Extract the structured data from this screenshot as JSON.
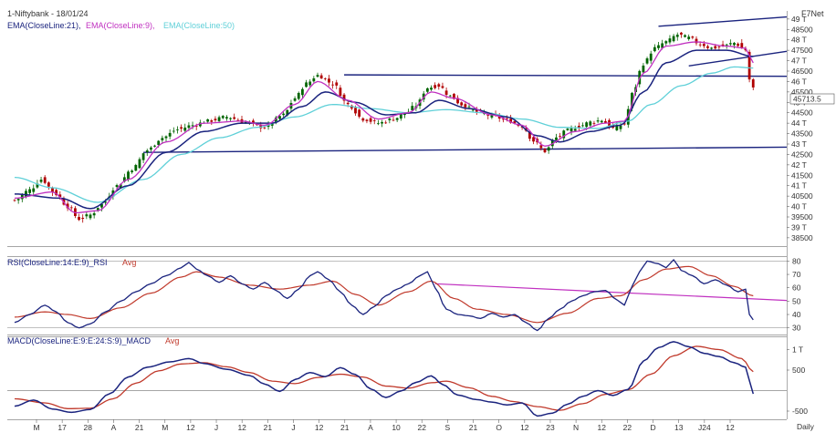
{
  "header": {
    "title": "1-Niftybank - 18/01/24",
    "vendor": "F7Net",
    "legend": [
      {
        "text": "EMA(CloseLine:21),",
        "color": "#1a237e"
      },
      {
        "text": "EMA(CloseLine:9),",
        "color": "#c030c0"
      },
      {
        "text": "EMA(CloseLine:50)",
        "color": "#5fd0d8"
      }
    ],
    "last_price_tag": "45713.5"
  },
  "colors": {
    "up": "#006400",
    "down": "#b00000",
    "ema21": "#1a237e",
    "ema9": "#c030c0",
    "ema50": "#5fd0d8",
    "trend": "#1a237e",
    "rsi": "#1a237e",
    "rsi_avg": "#c0392b",
    "rsi_trend": "#c030c0",
    "macd": "#1a237e",
    "macd_avg": "#c0392b"
  },
  "price_panel": {
    "y_ticks": [
      "49 T",
      "48500",
      "48 T",
      "47500",
      "47 T",
      "46500",
      "46 T",
      "45500",
      "45 T",
      "44500",
      "44 T",
      "43500",
      "43 T",
      "42500",
      "42 T",
      "41500",
      "41 T",
      "40500",
      "40 T",
      "39500",
      "39 T",
      "38500"
    ],
    "y_values": [
      49000,
      48500,
      48000,
      47500,
      47000,
      46500,
      46000,
      45500,
      45000,
      44500,
      44000,
      43500,
      43000,
      42500,
      42000,
      41500,
      41000,
      40500,
      40000,
      39500,
      39000,
      38500
    ],
    "ylim": [
      38100,
      49300
    ]
  },
  "rsi_panel": {
    "label": "RSI(CloseLine:14:E:9)_RSI",
    "avg_label": "Avg",
    "y_ticks": [
      "80",
      "70",
      "60",
      "50",
      "40",
      "30"
    ],
    "y_values": [
      80,
      70,
      60,
      50,
      40,
      30
    ],
    "ylim": [
      25,
      83
    ]
  },
  "macd_panel": {
    "label": "MACD(CloseLine:E:9:E:24:S:9)_MACD",
    "avg_label": "Avg",
    "y_ticks": [
      "1 T",
      "500",
      "-500"
    ],
    "y_values": [
      1000,
      500,
      -500
    ],
    "ylim": [
      -700,
      1300
    ]
  },
  "x_axis": {
    "labels": [
      "M",
      "17",
      "28",
      "A",
      "21",
      "M",
      "12",
      "J",
      "12",
      "21",
      "J",
      "12",
      "21",
      "A",
      "10",
      "22",
      "S",
      "21",
      "O",
      "12",
      "23",
      "N",
      "12",
      "22",
      "D",
      "13",
      "J24",
      "12"
    ],
    "period": "Daily"
  },
  "chart_data": {
    "type": "line",
    "title": "1-Niftybank - 18/01/24",
    "x_period": "Daily",
    "last_close": 45713.5,
    "price_anchors": [
      [
        0,
        40300
      ],
      [
        4,
        40800
      ],
      [
        7,
        41300
      ],
      [
        11,
        40600
      ],
      [
        14,
        40000
      ],
      [
        17,
        39400
      ],
      [
        20,
        39600
      ],
      [
        23,
        40100
      ],
      [
        27,
        41000
      ],
      [
        31,
        41800
      ],
      [
        35,
        42700
      ],
      [
        39,
        43300
      ],
      [
        43,
        43700
      ],
      [
        47,
        43900
      ],
      [
        51,
        44100
      ],
      [
        56,
        44300
      ],
      [
        61,
        44050
      ],
      [
        66,
        43800
      ],
      [
        71,
        44400
      ],
      [
        74,
        45200
      ],
      [
        77,
        45900
      ],
      [
        80,
        46300
      ],
      [
        84,
        45900
      ],
      [
        88,
        44900
      ],
      [
        92,
        44200
      ],
      [
        96,
        44000
      ],
      [
        100,
        44200
      ],
      [
        103,
        44450
      ],
      [
        106,
        44850
      ],
      [
        109,
        45700
      ],
      [
        112,
        45800
      ],
      [
        115,
        45300
      ],
      [
        118,
        44900
      ],
      [
        122,
        44550
      ],
      [
        126,
        44350
      ],
      [
        130,
        44150
      ],
      [
        134,
        43850
      ],
      [
        137,
        43150
      ],
      [
        140,
        42650
      ],
      [
        143,
        43300
      ],
      [
        146,
        43650
      ],
      [
        149,
        43850
      ],
      [
        152,
        44050
      ],
      [
        155,
        44150
      ],
      [
        158,
        43750
      ],
      [
        161,
        43950
      ],
      [
        163,
        45400
      ],
      [
        166,
        46850
      ],
      [
        169,
        47600
      ],
      [
        172,
        47900
      ],
      [
        175,
        48250
      ],
      [
        178,
        48100
      ],
      [
        181,
        47800
      ],
      [
        184,
        47600
      ],
      [
        187,
        47700
      ],
      [
        190,
        47850
      ],
      [
        193,
        47500
      ],
      [
        194,
        46100
      ],
      [
        195,
        45713.5
      ]
    ],
    "ema9_anchors": [
      [
        0,
        40400
      ],
      [
        10,
        40700
      ],
      [
        16,
        39700
      ],
      [
        22,
        39800
      ],
      [
        30,
        41300
      ],
      [
        40,
        43100
      ],
      [
        50,
        44000
      ],
      [
        60,
        44100
      ],
      [
        66,
        43900
      ],
      [
        74,
        44900
      ],
      [
        80,
        46000
      ],
      [
        88,
        45100
      ],
      [
        96,
        44200
      ],
      [
        104,
        44500
      ],
      [
        110,
        45500
      ],
      [
        116,
        45200
      ],
      [
        126,
        44400
      ],
      [
        134,
        43900
      ],
      [
        140,
        42900
      ],
      [
        148,
        43600
      ],
      [
        156,
        44000
      ],
      [
        161,
        44100
      ],
      [
        166,
        46400
      ],
      [
        172,
        47700
      ],
      [
        180,
        47900
      ],
      [
        188,
        47700
      ],
      [
        193,
        47600
      ],
      [
        195,
        46900
      ]
    ],
    "ema21_anchors": [
      [
        0,
        40600
      ],
      [
        12,
        40400
      ],
      [
        20,
        39900
      ],
      [
        30,
        41000
      ],
      [
        40,
        42600
      ],
      [
        50,
        43600
      ],
      [
        60,
        44000
      ],
      [
        68,
        44000
      ],
      [
        76,
        44800
      ],
      [
        82,
        45500
      ],
      [
        90,
        45000
      ],
      [
        98,
        44400
      ],
      [
        106,
        44500
      ],
      [
        112,
        45100
      ],
      [
        120,
        44700
      ],
      [
        130,
        44300
      ],
      [
        138,
        43400
      ],
      [
        144,
        43100
      ],
      [
        152,
        43600
      ],
      [
        160,
        43900
      ],
      [
        166,
        45500
      ],
      [
        172,
        46900
      ],
      [
        180,
        47500
      ],
      [
        188,
        47500
      ],
      [
        195,
        47200
      ]
    ],
    "ema50_anchors": [
      [
        0,
        41400
      ],
      [
        10,
        40900
      ],
      [
        22,
        40200
      ],
      [
        34,
        41300
      ],
      [
        44,
        42500
      ],
      [
        54,
        43300
      ],
      [
        64,
        43800
      ],
      [
        74,
        44300
      ],
      [
        84,
        44900
      ],
      [
        94,
        44700
      ],
      [
        104,
        44500
      ],
      [
        114,
        44650
      ],
      [
        124,
        44500
      ],
      [
        134,
        44200
      ],
      [
        144,
        43800
      ],
      [
        154,
        43750
      ],
      [
        162,
        44100
      ],
      [
        168,
        44900
      ],
      [
        176,
        45800
      ],
      [
        184,
        46400
      ],
      [
        190,
        46700
      ],
      [
        195,
        46650
      ]
    ],
    "trendlines": [
      {
        "name": "support",
        "from": [
          34,
          42600
        ],
        "to": [
          210,
          42850
        ]
      },
      {
        "name": "resistance",
        "from": [
          87,
          46320
        ],
        "to": [
          210,
          46250
        ]
      },
      {
        "name": "channel-top",
        "from": [
          170,
          48650
        ],
        "to": [
          210,
          49100
        ]
      },
      {
        "name": "channel-mid",
        "from": [
          178,
          46750
        ],
        "to": [
          210,
          47450
        ]
      }
    ],
    "rsi_anchors": [
      [
        0,
        34
      ],
      [
        4,
        40
      ],
      [
        8,
        47
      ],
      [
        11,
        42
      ],
      [
        14,
        34
      ],
      [
        17,
        30
      ],
      [
        20,
        33
      ],
      [
        24,
        42
      ],
      [
        28,
        50
      ],
      [
        32,
        57
      ],
      [
        36,
        63
      ],
      [
        40,
        69
      ],
      [
        44,
        75
      ],
      [
        46,
        79
      ],
      [
        48,
        74
      ],
      [
        51,
        69
      ],
      [
        54,
        64
      ],
      [
        57,
        69
      ],
      [
        60,
        63
      ],
      [
        63,
        59
      ],
      [
        66,
        64
      ],
      [
        69,
        58
      ],
      [
        72,
        52
      ],
      [
        75,
        59
      ],
      [
        78,
        69
      ],
      [
        80,
        72
      ],
      [
        83,
        66
      ],
      [
        86,
        57
      ],
      [
        89,
        47
      ],
      [
        92,
        40
      ],
      [
        95,
        46
      ],
      [
        98,
        54
      ],
      [
        101,
        59
      ],
      [
        104,
        63
      ],
      [
        107,
        69
      ],
      [
        109,
        72
      ],
      [
        111,
        60
      ],
      [
        114,
        44
      ],
      [
        117,
        40
      ],
      [
        120,
        39
      ],
      [
        123,
        37
      ],
      [
        126,
        41
      ],
      [
        129,
        38
      ],
      [
        132,
        40
      ],
      [
        135,
        34
      ],
      [
        138,
        28
      ],
      [
        141,
        37
      ],
      [
        144,
        44
      ],
      [
        147,
        50
      ],
      [
        150,
        54
      ],
      [
        153,
        57
      ],
      [
        156,
        58
      ],
      [
        159,
        51
      ],
      [
        161,
        47
      ],
      [
        163,
        61
      ],
      [
        165,
        72
      ],
      [
        167,
        80
      ],
      [
        170,
        78
      ],
      [
        172,
        75
      ],
      [
        174,
        81
      ],
      [
        176,
        73
      ],
      [
        179,
        69
      ],
      [
        182,
        63
      ],
      [
        185,
        66
      ],
      [
        188,
        62
      ],
      [
        191,
        57
      ],
      [
        193,
        59
      ],
      [
        194,
        40
      ],
      [
        195,
        36
      ]
    ],
    "rsi_avg_anchors": [
      [
        0,
        38
      ],
      [
        8,
        42
      ],
      [
        14,
        40
      ],
      [
        20,
        37
      ],
      [
        28,
        45
      ],
      [
        36,
        56
      ],
      [
        44,
        68
      ],
      [
        48,
        72
      ],
      [
        54,
        68
      ],
      [
        62,
        62
      ],
      [
        70,
        59
      ],
      [
        78,
        62
      ],
      [
        84,
        65
      ],
      [
        90,
        55
      ],
      [
        96,
        47
      ],
      [
        104,
        57
      ],
      [
        110,
        65
      ],
      [
        116,
        52
      ],
      [
        122,
        44
      ],
      [
        130,
        40
      ],
      [
        138,
        34
      ],
      [
        146,
        41
      ],
      [
        154,
        52
      ],
      [
        160,
        54
      ],
      [
        166,
        66
      ],
      [
        172,
        74
      ],
      [
        178,
        76
      ],
      [
        184,
        69
      ],
      [
        190,
        61
      ],
      [
        195,
        54
      ]
    ],
    "rsi_trendline": {
      "from": [
        111,
        63
      ],
      "to": [
        210,
        50.5
      ]
    },
    "macd_anchors": [
      [
        0,
        -380
      ],
      [
        5,
        -230
      ],
      [
        10,
        -450
      ],
      [
        15,
        -530
      ],
      [
        20,
        -460
      ],
      [
        25,
        -80
      ],
      [
        30,
        330
      ],
      [
        35,
        570
      ],
      [
        41,
        700
      ],
      [
        46,
        780
      ],
      [
        50,
        660
      ],
      [
        56,
        520
      ],
      [
        62,
        370
      ],
      [
        66,
        160
      ],
      [
        70,
        -20
      ],
      [
        74,
        270
      ],
      [
        78,
        440
      ],
      [
        82,
        340
      ],
      [
        86,
        560
      ],
      [
        90,
        390
      ],
      [
        94,
        40
      ],
      [
        98,
        -170
      ],
      [
        102,
        -10
      ],
      [
        106,
        200
      ],
      [
        110,
        360
      ],
      [
        113,
        150
      ],
      [
        117,
        -110
      ],
      [
        122,
        -220
      ],
      [
        126,
        -280
      ],
      [
        130,
        -350
      ],
      [
        134,
        -300
      ],
      [
        138,
        -620
      ],
      [
        142,
        -550
      ],
      [
        146,
        -330
      ],
      [
        150,
        -140
      ],
      [
        154,
        0
      ],
      [
        158,
        -120
      ],
      [
        162,
        30
      ],
      [
        166,
        720
      ],
      [
        170,
        1050
      ],
      [
        174,
        1190
      ],
      [
        178,
        1070
      ],
      [
        182,
        910
      ],
      [
        186,
        830
      ],
      [
        190,
        680
      ],
      [
        193,
        570
      ],
      [
        195,
        -80
      ]
    ],
    "macd_avg_anchors": [
      [
        0,
        -200
      ],
      [
        8,
        -300
      ],
      [
        14,
        -440
      ],
      [
        20,
        -430
      ],
      [
        26,
        -200
      ],
      [
        32,
        180
      ],
      [
        38,
        480
      ],
      [
        44,
        650
      ],
      [
        50,
        680
      ],
      [
        56,
        580
      ],
      [
        62,
        440
      ],
      [
        68,
        230
      ],
      [
        74,
        170
      ],
      [
        80,
        320
      ],
      [
        86,
        400
      ],
      [
        92,
        330
      ],
      [
        98,
        110
      ],
      [
        104,
        60
      ],
      [
        110,
        190
      ],
      [
        114,
        230
      ],
      [
        120,
        70
      ],
      [
        126,
        -140
      ],
      [
        132,
        -270
      ],
      [
        138,
        -390
      ],
      [
        144,
        -480
      ],
      [
        150,
        -320
      ],
      [
        156,
        -90
      ],
      [
        162,
        20
      ],
      [
        168,
        400
      ],
      [
        174,
        850
      ],
      [
        180,
        1080
      ],
      [
        186,
        1000
      ],
      [
        192,
        780
      ],
      [
        195,
        460
      ]
    ]
  }
}
